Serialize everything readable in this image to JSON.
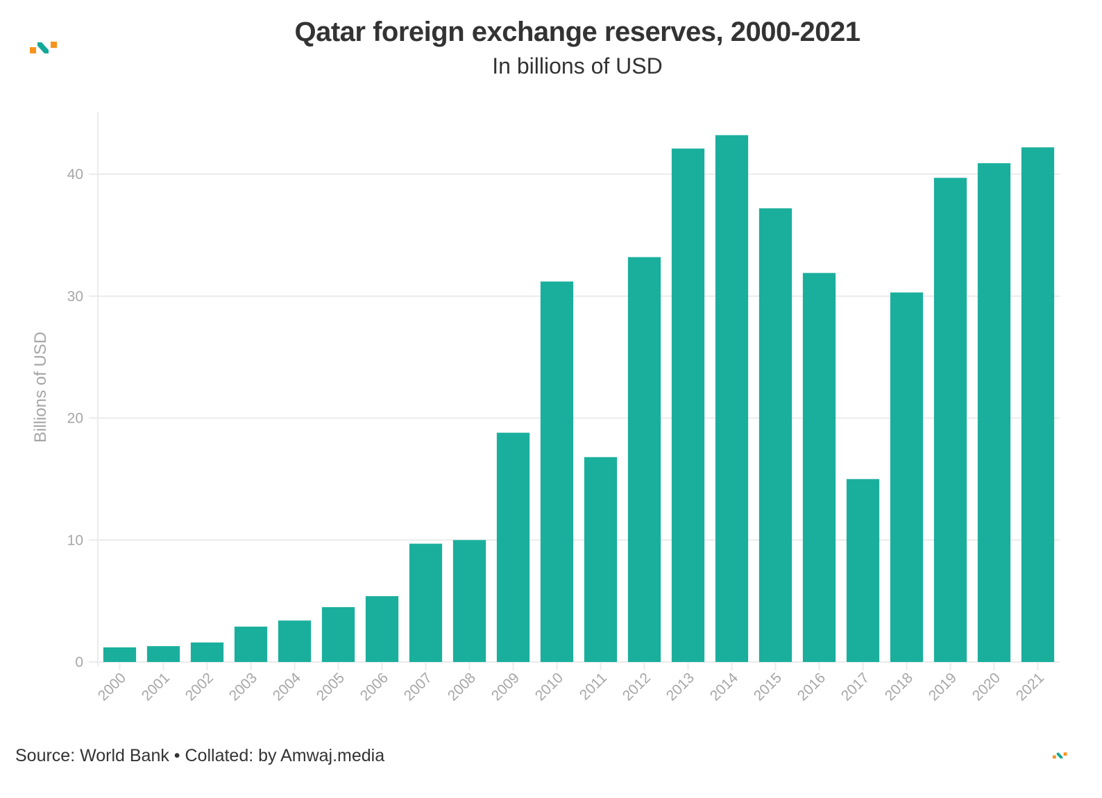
{
  "header": {
    "title": "Qatar foreign exchange reserves, 2000-2021",
    "subtitle": "In billions of USD"
  },
  "footer": {
    "source": "Source: World Bank • Collated: by Amwaj.media"
  },
  "branding": {
    "logo_icon": "amwaj-logo-icon",
    "colors": {
      "orange": "#f7941d",
      "teal": "#13a898"
    }
  },
  "chart_data": {
    "type": "bar",
    "title": "Qatar foreign exchange reserves, 2000-2021",
    "subtitle": "In billions of USD",
    "xlabel": "",
    "ylabel": "Billions of USD",
    "categories": [
      "2000",
      "2001",
      "2002",
      "2003",
      "2004",
      "2005",
      "2006",
      "2007",
      "2008",
      "2009",
      "2010",
      "2011",
      "2012",
      "2013",
      "2014",
      "2015",
      "2016",
      "2017",
      "2018",
      "2019",
      "2020",
      "2021"
    ],
    "values": [
      1.2,
      1.3,
      1.6,
      2.9,
      3.4,
      4.5,
      5.4,
      9.7,
      10.0,
      18.8,
      31.2,
      16.8,
      33.2,
      42.1,
      43.2,
      37.2,
      31.9,
      15.0,
      30.3,
      39.7,
      40.9,
      42.2
    ],
    "ylim": [
      0,
      45
    ],
    "yticks": [
      0,
      10,
      20,
      30,
      40
    ],
    "grid": true,
    "legend": "none",
    "bar_color": "#1aaf9c",
    "x_tick_rotation_deg": -45,
    "source": "Source: World Bank • Collated: by Amwaj.media"
  }
}
